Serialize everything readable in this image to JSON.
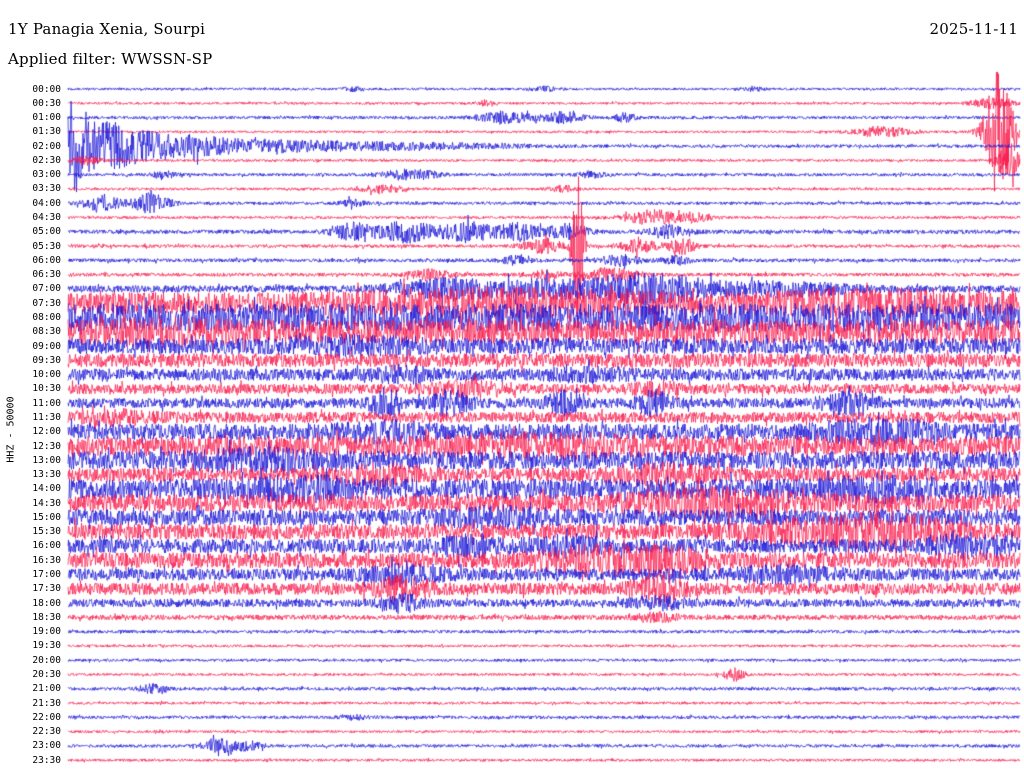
{
  "header": {
    "station_title": "1Y Panagia Xenia, Sourpi",
    "date": "2025-11-11",
    "filter_label": "Applied filter: WWSSN-SP"
  },
  "axis": {
    "left_label": "HHZ - 50000"
  },
  "colors": {
    "blue": "#1812d6",
    "red": "#f8194b",
    "background": "#ffffff",
    "text": "#000000"
  },
  "chart_data": {
    "type": "line",
    "subtype": "helicorder-dayplot",
    "title": "1Y Panagia Xenia, Sourpi",
    "date": "2025-11-11",
    "filter": "WWSSN-SP",
    "channel_scale_label": "HHZ - 50000",
    "minutes_per_row": 30,
    "row_time_range": [
      "00:00",
      "23:30"
    ],
    "x_axis": "time within each 30-minute line (left = start, right = end)",
    "amplitude_units": "relative trace amplitude (envelope, px)",
    "legend": "trace color alternates blue/red every 30 minutes",
    "notable_events": [
      {
        "time": "01:30-02:30",
        "desc": "large clipped event at end of 01:30 line (red) continuing with decaying coda at start of 02:00 line (blue)"
      },
      {
        "time": "05:45",
        "desc": "large narrow clipped spike mid-line on 05:30 row (red)"
      },
      {
        "time": "07:00-18:30",
        "desc": "sustained high-amplitude noise band"
      },
      {
        "time": "19:00-23:30",
        "desc": "quiet background with isolated small bursts at 20:30, 21:00 and 23:00"
      }
    ],
    "rows": [
      {
        "time": "00:00",
        "color": "blue",
        "base": 1.2,
        "events": [
          [
            0.3,
            2,
            0.008
          ],
          [
            0.5,
            2.5,
            0.01
          ],
          [
            0.72,
            2,
            0.008
          ]
        ]
      },
      {
        "time": "00:30",
        "color": "red",
        "base": 1.2,
        "events": [
          [
            0.44,
            3,
            0.006
          ],
          [
            0.97,
            5,
            0.015
          ]
        ]
      },
      {
        "time": "01:00",
        "color": "blue",
        "base": 1.5,
        "events": [
          [
            0.46,
            6,
            0.02
          ],
          [
            0.52,
            5,
            0.015
          ],
          [
            0.585,
            4,
            0.008
          ]
        ]
      },
      {
        "time": "01:30",
        "color": "red",
        "base": 1.2,
        "events": [
          [
            0.855,
            5,
            0.02
          ],
          [
            0.978,
            70,
            0.01
          ]
        ]
      },
      {
        "time": "02:00",
        "color": "blue",
        "base": 1.6,
        "events": [
          [
            0.004,
            40,
            0.012
          ],
          [
            0.04,
            20,
            0.025
          ],
          [
            0.1,
            10,
            0.04
          ],
          [
            0.2,
            5,
            0.06
          ],
          [
            0.35,
            3,
            0.08
          ]
        ]
      },
      {
        "time": "02:30",
        "color": "red",
        "base": 1.3,
        "events": [
          [
            0.02,
            4,
            0.01
          ],
          [
            0.99,
            18,
            0.008
          ]
        ]
      },
      {
        "time": "03:00",
        "color": "blue",
        "base": 1.5,
        "events": [
          [
            0.1,
            3,
            0.01
          ],
          [
            0.36,
            5,
            0.02
          ],
          [
            0.55,
            3,
            0.01
          ]
        ]
      },
      {
        "time": "03:30",
        "color": "red",
        "base": 1.3,
        "events": [
          [
            0.33,
            4,
            0.015
          ],
          [
            0.52,
            3,
            0.01
          ]
        ]
      },
      {
        "time": "04:00",
        "color": "blue",
        "base": 1.6,
        "events": [
          [
            0.035,
            8,
            0.012
          ],
          [
            0.085,
            9,
            0.015
          ],
          [
            0.3,
            3,
            0.01
          ]
        ]
      },
      {
        "time": "04:30",
        "color": "red",
        "base": 1.4,
        "events": [
          [
            0.615,
            7,
            0.02
          ],
          [
            0.66,
            4,
            0.012
          ]
        ]
      },
      {
        "time": "05:00",
        "color": "blue",
        "base": 2,
        "events": [
          [
            0.3,
            8,
            0.015
          ],
          [
            0.355,
            10,
            0.02
          ],
          [
            0.42,
            9,
            0.02
          ],
          [
            0.475,
            8,
            0.015
          ],
          [
            0.525,
            7,
            0.015
          ],
          [
            0.63,
            6,
            0.015
          ]
        ]
      },
      {
        "time": "05:30",
        "color": "red",
        "base": 1.6,
        "events": [
          [
            0.5,
            7,
            0.015
          ],
          [
            0.536,
            75,
            0.004
          ],
          [
            0.6,
            6,
            0.015
          ],
          [
            0.645,
            8,
            0.01
          ]
        ]
      },
      {
        "time": "06:00",
        "color": "blue",
        "base": 1.8,
        "events": [
          [
            0.47,
            4,
            0.01
          ],
          [
            0.58,
            5,
            0.015
          ],
          [
            0.64,
            4,
            0.01
          ]
        ]
      },
      {
        "time": "06:30",
        "color": "red",
        "base": 1.8,
        "events": [
          [
            0.38,
            5,
            0.015
          ],
          [
            0.5,
            4,
            0.012
          ],
          [
            0.57,
            6,
            0.02
          ]
        ]
      },
      {
        "time": "07:00",
        "color": "blue",
        "base": 3.5,
        "events": [
          [
            0.4,
            9,
            0.04
          ],
          [
            0.5,
            7,
            0.03
          ],
          [
            0.58,
            12,
            0.03
          ],
          [
            0.64,
            9,
            0.03
          ],
          [
            0.75,
            6,
            0.05
          ]
        ]
      },
      {
        "time": "07:30",
        "color": "red",
        "base": 11,
        "events": [
          [
            0.45,
            6,
            0.1
          ],
          [
            0.85,
            5,
            0.08
          ]
        ]
      },
      {
        "time": "08:00",
        "color": "blue",
        "base": 14,
        "events": []
      },
      {
        "time": "08:30",
        "color": "red",
        "base": 12,
        "events": [
          [
            0.1,
            4,
            0.05
          ]
        ]
      },
      {
        "time": "09:00",
        "color": "blue",
        "base": 8,
        "events": [
          [
            0.3,
            4,
            0.05
          ]
        ]
      },
      {
        "time": "09:30",
        "color": "red",
        "base": 7,
        "events": []
      },
      {
        "time": "10:00",
        "color": "blue",
        "base": 6,
        "events": [
          [
            0.35,
            5,
            0.02
          ],
          [
            0.55,
            4,
            0.03
          ]
        ]
      },
      {
        "time": "10:30",
        "color": "red",
        "base": 5,
        "events": [
          [
            0.42,
            5,
            0.03
          ],
          [
            0.62,
            4,
            0.02
          ]
        ]
      },
      {
        "time": "11:00",
        "color": "blue",
        "base": 5,
        "events": [
          [
            0.335,
            12,
            0.012
          ],
          [
            0.4,
            10,
            0.015
          ],
          [
            0.52,
            9,
            0.012
          ],
          [
            0.615,
            10,
            0.012
          ],
          [
            0.82,
            8,
            0.02
          ]
        ]
      },
      {
        "time": "11:30",
        "color": "red",
        "base": 5.5,
        "events": [
          [
            0.05,
            4,
            0.03
          ]
        ]
      },
      {
        "time": "12:00",
        "color": "blue",
        "base": 8,
        "events": [
          [
            0.33,
            6,
            0.03
          ],
          [
            0.85,
            8,
            0.04
          ]
        ]
      },
      {
        "time": "12:30",
        "color": "red",
        "base": 10,
        "events": [
          [
            0.5,
            5,
            0.08
          ]
        ]
      },
      {
        "time": "13:00",
        "color": "blue",
        "base": 9,
        "events": [
          [
            0.2,
            5,
            0.05
          ]
        ]
      },
      {
        "time": "13:30",
        "color": "red",
        "base": 7,
        "events": [
          [
            0.33,
            6,
            0.03
          ],
          [
            0.62,
            6,
            0.04
          ]
        ]
      },
      {
        "time": "14:00",
        "color": "blue",
        "base": 10,
        "events": [
          [
            0.25,
            5,
            0.05
          ],
          [
            0.85,
            6,
            0.04
          ]
        ]
      },
      {
        "time": "14:30",
        "color": "red",
        "base": 9,
        "events": [
          [
            0.68,
            8,
            0.06
          ]
        ]
      },
      {
        "time": "15:00",
        "color": "blue",
        "base": 8,
        "events": [
          [
            0.45,
            5,
            0.04
          ]
        ]
      },
      {
        "time": "15:30",
        "color": "red",
        "base": 8,
        "events": [
          [
            0.8,
            9,
            0.06
          ],
          [
            0.88,
            8,
            0.04
          ]
        ]
      },
      {
        "time": "16:00",
        "color": "blue",
        "base": 7,
        "events": [
          [
            0.42,
            8,
            0.02
          ],
          [
            0.52,
            6,
            0.03
          ],
          [
            0.95,
            8,
            0.03
          ]
        ]
      },
      {
        "time": "16:30",
        "color": "red",
        "base": 8,
        "events": [
          [
            0.55,
            9,
            0.04
          ],
          [
            0.63,
            8,
            0.03
          ]
        ]
      },
      {
        "time": "17:00",
        "color": "blue",
        "base": 6,
        "events": [
          [
            0.35,
            6,
            0.03
          ],
          [
            0.75,
            5,
            0.04
          ]
        ]
      },
      {
        "time": "17:30",
        "color": "red",
        "base": 6,
        "events": [
          [
            0.35,
            9,
            0.02
          ],
          [
            0.62,
            10,
            0.02
          ]
        ]
      },
      {
        "time": "18:00",
        "color": "blue",
        "base": 4,
        "events": [
          [
            0.35,
            7,
            0.015
          ],
          [
            0.62,
            5,
            0.02
          ]
        ]
      },
      {
        "time": "18:30",
        "color": "red",
        "base": 2.5,
        "events": [
          [
            0.62,
            4,
            0.015
          ]
        ]
      },
      {
        "time": "19:00",
        "color": "blue",
        "base": 1.6,
        "events": []
      },
      {
        "time": "19:30",
        "color": "red",
        "base": 1.3,
        "events": []
      },
      {
        "time": "20:00",
        "color": "blue",
        "base": 1.4,
        "events": []
      },
      {
        "time": "20:30",
        "color": "red",
        "base": 1.3,
        "events": [
          [
            0.7,
            6,
            0.008
          ]
        ]
      },
      {
        "time": "21:00",
        "color": "blue",
        "base": 1.6,
        "events": [
          [
            0.091,
            5,
            0.01
          ]
        ]
      },
      {
        "time": "21:30",
        "color": "red",
        "base": 1.3,
        "events": []
      },
      {
        "time": "22:00",
        "color": "blue",
        "base": 1.6,
        "events": [
          [
            0.3,
            2,
            0.01
          ]
        ]
      },
      {
        "time": "22:30",
        "color": "red",
        "base": 1.3,
        "events": []
      },
      {
        "time": "23:00",
        "color": "blue",
        "base": 1.6,
        "events": [
          [
            0.16,
            6,
            0.012
          ],
          [
            0.19,
            4,
            0.01
          ]
        ]
      },
      {
        "time": "23:30",
        "color": "red",
        "base": 1.3,
        "events": []
      }
    ]
  }
}
